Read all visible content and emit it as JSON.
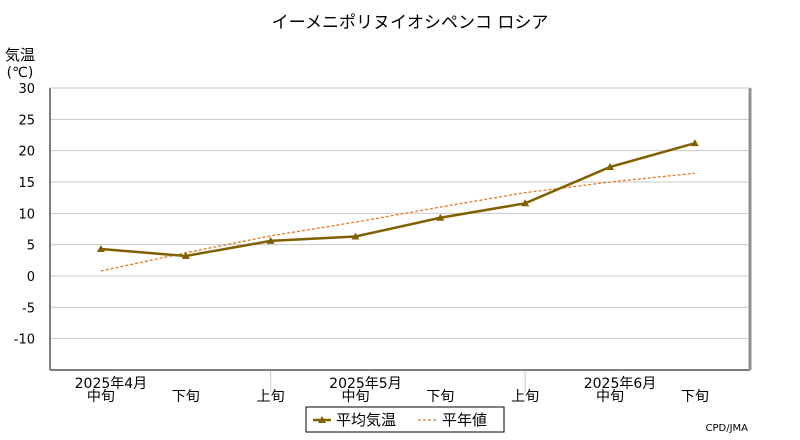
{
  "chart_data": {
    "type": "line",
    "title": "イーメニポリヌイオシペンコ ロシア",
    "ylabel_line1": "気温",
    "ylabel_line2": "(℃)",
    "ylim": [
      -15,
      30
    ],
    "yticks": [
      30,
      25,
      20,
      15,
      10,
      5,
      0,
      -5,
      -10
    ],
    "periods": [
      "中旬",
      "下旬",
      "上旬",
      "中旬",
      "下旬",
      "上旬",
      "中旬",
      "下旬"
    ],
    "months": [
      {
        "label": "2025年4月",
        "index": 0
      },
      {
        "label": "2025年5月",
        "index": 3
      },
      {
        "label": "2025年6月",
        "index": 6
      }
    ],
    "series": [
      {
        "name": "平均気温",
        "values": [
          4.3,
          3.2,
          5.6,
          6.3,
          9.3,
          11.6,
          17.4,
          21.2
        ],
        "color": "#806000"
      },
      {
        "name": "平年値",
        "values": [
          0.8,
          3.7,
          6.4,
          8.6,
          11.0,
          13.3,
          15.0,
          16.4
        ],
        "color": "#e07a20"
      }
    ],
    "grid": true,
    "legend": "bottom-center",
    "credit": "CPD/JMA"
  }
}
